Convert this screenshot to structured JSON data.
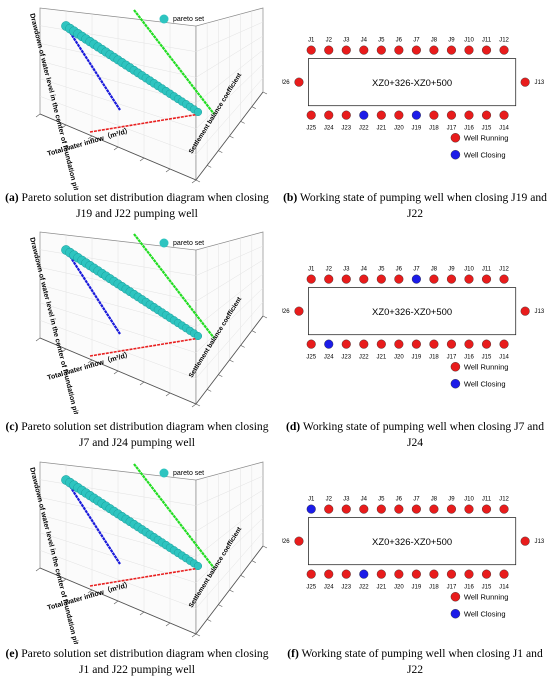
{
  "panels": [
    {
      "id": "a",
      "caption_label": "(a)",
      "caption_text": " Pareto solution set distribution diagram when closing J19 and J22 pumping well",
      "legend": "pareto set",
      "z_label": "Drawdown of water level in the center of foundation pit（m）",
      "x_label": "Total water inflow（m³/d）",
      "y_label": "Settlement balance coefficient"
    },
    {
      "id": "c",
      "caption_label": "(c)",
      "caption_text": " Pareto solution set distribution diagram when closing J7 and J24 pumping well",
      "legend": "pareto set",
      "z_label": "Drawdown of water level in the center of foundation pit（m）",
      "x_label": "Total water inflow（m³/d）",
      "y_label": "Settlement balance coefficient"
    },
    {
      "id": "e",
      "caption_label": "(e)",
      "caption_text": " Pareto solution set distribution diagram when closing J1 and J22 pumping well",
      "legend": "pareto set",
      "z_label": "Drawdown of water level in the center of foundation pit（m）",
      "x_label": "Total water inflow（m³/d）",
      "y_label": "Settlement balance coefficient"
    }
  ],
  "well_panels": [
    {
      "id": "b",
      "caption_label": "(b)",
      "caption_text": " Working state of pumping well when closing J19 and J22",
      "pit_label": "XZ0+326-XZ0+500",
      "top_wells": [
        "J1",
        "J2",
        "J3",
        "J4",
        "J5",
        "J6",
        "J7",
        "J8",
        "J9",
        "J10",
        "J11",
        "J12"
      ],
      "bottom_wells": [
        "J25",
        "J24",
        "J23",
        "J22",
        "J21",
        "J20",
        "J19",
        "J18",
        "J17",
        "J16",
        "J15",
        "J14"
      ],
      "left_well": "J26",
      "right_well": "J13",
      "closed": [
        "J19",
        "J22"
      ],
      "legend_running": "Well Running",
      "legend_closing": "Well Closing"
    },
    {
      "id": "d",
      "caption_label": "(d)",
      "caption_text": " Working state of pumping well when closing J7 and J24",
      "pit_label": "XZ0+326-XZ0+500",
      "top_wells": [
        "J1",
        "J2",
        "J3",
        "J4",
        "J5",
        "J6",
        "J7",
        "J8",
        "J9",
        "J10",
        "J11",
        "J12"
      ],
      "bottom_wells": [
        "J25",
        "J24",
        "J23",
        "J22",
        "J21",
        "J20",
        "J19",
        "J18",
        "J17",
        "J16",
        "J15",
        "J14"
      ],
      "left_well": "J26",
      "right_well": "J13",
      "closed": [
        "J7",
        "J24"
      ],
      "legend_running": "Well Running",
      "legend_closing": "Well Closing"
    },
    {
      "id": "f",
      "caption_label": "(f)",
      "caption_text": " Working state of pumping well when closing J1 and J22",
      "pit_label": "XZ0+326-XZ0+500",
      "top_wells": [
        "J1",
        "J2",
        "J3",
        "J4",
        "J5",
        "J6",
        "J7",
        "J8",
        "J9",
        "J10",
        "J11",
        "J12"
      ],
      "bottom_wells": [
        "J25",
        "J24",
        "J23",
        "J22",
        "J21",
        "J20",
        "J19",
        "J18",
        "J17",
        "J16",
        "J15",
        "J14"
      ],
      "left_well": "J26",
      "right_well": "J13",
      "closed": [
        "J1",
        "J22"
      ],
      "legend_running": "Well Running",
      "legend_closing": "Well Closing"
    }
  ],
  "colors": {
    "pareto": "#2ec4c0",
    "projection_xz": "#1a1adc",
    "projection_yz": "#22dd22",
    "projection_xy": "#e82020",
    "well_running": "#e81c1c",
    "well_closing": "#1c1ce8"
  }
}
